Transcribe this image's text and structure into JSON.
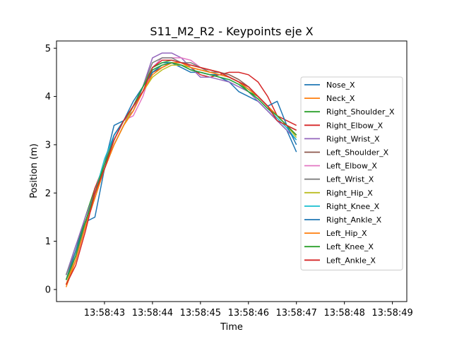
{
  "chart_data": {
    "type": "line",
    "title": "S11_M2_R2 - Keypoints eje X",
    "xlabel": "Time",
    "ylabel": "Position (m)",
    "x_ticks": [
      "13:58:43",
      "13:58:44",
      "13:58:45",
      "13:58:46",
      "13:58:47",
      "13:58:48",
      "13:58:49"
    ],
    "x_tick_seconds": [
      43,
      44,
      45,
      46,
      47,
      48,
      49
    ],
    "y_ticks": [
      0,
      1,
      2,
      3,
      4,
      5
    ],
    "xlim_seconds": [
      42.0,
      49.3
    ],
    "ylim": [
      -0.25,
      5.15
    ],
    "grid": false,
    "legend_position": "center-right",
    "x_seconds": [
      42.2,
      42.4,
      42.6,
      42.8,
      43.0,
      43.2,
      43.4,
      43.6,
      43.8,
      44.0,
      44.2,
      44.4,
      44.6,
      44.8,
      45.0,
      45.2,
      45.4,
      45.6,
      45.8,
      46.0,
      46.2,
      46.4,
      46.6,
      46.8,
      47.0
    ],
    "series": [
      {
        "name": "Nose_X",
        "color": "#1f77b4",
        "values": [
          0.3,
          0.9,
          1.4,
          1.9,
          2.6,
          3.4,
          3.5,
          3.9,
          4.2,
          4.6,
          4.7,
          4.7,
          4.6,
          4.5,
          4.5,
          4.45,
          4.4,
          4.3,
          4.1,
          4.0,
          3.9,
          3.7,
          3.5,
          3.3,
          2.85
        ]
      },
      {
        "name": "Neck_X",
        "color": "#ff7f0e",
        "values": [
          0.1,
          0.7,
          1.4,
          1.9,
          2.5,
          3.0,
          3.4,
          3.7,
          4.2,
          4.5,
          4.6,
          4.7,
          4.7,
          4.65,
          4.6,
          4.55,
          4.5,
          4.4,
          4.3,
          4.2,
          4.0,
          3.8,
          3.6,
          3.4,
          3.2
        ]
      },
      {
        "name": "Right_Shoulder_X",
        "color": "#2ca02c",
        "values": [
          0.2,
          0.8,
          1.5,
          2.1,
          2.5,
          3.0,
          3.4,
          3.8,
          4.2,
          4.6,
          4.7,
          4.75,
          4.7,
          4.6,
          4.55,
          4.5,
          4.5,
          4.4,
          4.3,
          4.1,
          4.0,
          3.8,
          3.6,
          3.4,
          3.3
        ]
      },
      {
        "name": "Right_Elbow_X",
        "color": "#d62728",
        "values": [
          0.1,
          0.6,
          1.3,
          2.1,
          2.6,
          3.1,
          3.5,
          3.8,
          4.1,
          4.5,
          4.6,
          4.7,
          4.7,
          4.6,
          4.45,
          4.4,
          4.45,
          4.5,
          4.5,
          4.45,
          4.3,
          4.0,
          3.6,
          3.5,
          3.4
        ]
      },
      {
        "name": "Right_Wrist_X",
        "color": "#9467bd",
        "values": [
          0.3,
          0.9,
          1.5,
          2.0,
          2.6,
          3.1,
          3.5,
          3.7,
          4.2,
          4.8,
          4.9,
          4.9,
          4.8,
          4.6,
          4.4,
          4.4,
          4.35,
          4.3,
          4.2,
          4.1,
          3.9,
          3.7,
          3.5,
          3.3,
          3.1
        ]
      },
      {
        "name": "Left_Shoulder_X",
        "color": "#8c564b",
        "values": [
          0.2,
          0.7,
          1.4,
          2.0,
          2.5,
          3.0,
          3.4,
          3.8,
          4.1,
          4.5,
          4.6,
          4.7,
          4.7,
          4.65,
          4.6,
          4.55,
          4.5,
          4.45,
          4.35,
          4.2,
          4.0,
          3.8,
          3.6,
          3.4,
          3.2
        ]
      },
      {
        "name": "Left_Elbow_X",
        "color": "#e377c2",
        "values": [
          0.2,
          0.7,
          1.3,
          1.9,
          2.5,
          3.1,
          3.5,
          3.6,
          4.0,
          4.6,
          4.8,
          4.8,
          4.8,
          4.75,
          4.6,
          4.5,
          4.5,
          4.4,
          4.3,
          4.2,
          4.0,
          3.8,
          3.6,
          3.4,
          3.2
        ]
      },
      {
        "name": "Left_Wrist_X",
        "color": "#7f7f7f",
        "values": [
          0.3,
          0.8,
          1.4,
          2.0,
          2.6,
          3.2,
          3.5,
          3.8,
          4.2,
          4.7,
          4.8,
          4.8,
          4.7,
          4.7,
          4.6,
          4.5,
          4.5,
          4.4,
          4.3,
          4.2,
          4.0,
          3.8,
          3.6,
          3.4,
          3.2
        ]
      },
      {
        "name": "Right_Hip_X",
        "color": "#bcbd22",
        "values": [
          0.1,
          0.6,
          1.3,
          1.9,
          2.5,
          3.0,
          3.4,
          3.8,
          4.1,
          4.4,
          4.55,
          4.65,
          4.65,
          4.6,
          4.55,
          4.5,
          4.45,
          4.4,
          4.3,
          4.15,
          4.0,
          3.8,
          3.6,
          3.4,
          3.15
        ]
      },
      {
        "name": "Right_Knee_X",
        "color": "#17becf",
        "values": [
          0.2,
          0.7,
          1.4,
          2.0,
          2.7,
          3.2,
          3.5,
          3.8,
          4.2,
          4.55,
          4.65,
          4.7,
          4.65,
          4.55,
          4.5,
          4.45,
          4.4,
          4.35,
          4.25,
          4.1,
          3.95,
          3.75,
          3.55,
          3.35,
          3.1
        ]
      },
      {
        "name": "Right_Ankle_X",
        "color": "#1f77b4",
        "values": [
          0.2,
          0.8,
          1.4,
          1.5,
          2.5,
          3.2,
          3.5,
          3.8,
          4.2,
          4.5,
          4.65,
          4.7,
          4.65,
          4.55,
          4.5,
          4.45,
          4.45,
          4.4,
          4.3,
          4.15,
          4.0,
          3.8,
          3.9,
          3.4,
          3.0
        ]
      },
      {
        "name": "Left_Hip_X",
        "color": "#ff7f0e",
        "values": [
          0.05,
          0.6,
          1.3,
          1.9,
          2.5,
          3.0,
          3.4,
          3.7,
          4.1,
          4.45,
          4.6,
          4.7,
          4.7,
          4.6,
          4.55,
          4.5,
          4.45,
          4.4,
          4.3,
          4.15,
          4.0,
          3.8,
          3.6,
          3.4,
          3.2
        ]
      },
      {
        "name": "Left_Knee_X",
        "color": "#2ca02c",
        "values": [
          0.2,
          0.7,
          1.4,
          2.0,
          2.6,
          3.1,
          3.5,
          3.8,
          4.2,
          4.55,
          4.65,
          4.7,
          4.65,
          4.55,
          4.5,
          4.45,
          4.4,
          4.35,
          4.25,
          4.1,
          3.95,
          3.75,
          3.6,
          3.4,
          3.2
        ]
      },
      {
        "name": "Left_Ankle_X",
        "color": "#d62728",
        "values": [
          0.1,
          0.5,
          1.2,
          2.0,
          2.5,
          3.1,
          3.5,
          3.8,
          4.1,
          4.6,
          4.75,
          4.75,
          4.7,
          4.65,
          4.6,
          4.55,
          4.5,
          4.4,
          4.3,
          4.2,
          4.0,
          3.8,
          3.5,
          3.4,
          3.3
        ]
      }
    ]
  }
}
